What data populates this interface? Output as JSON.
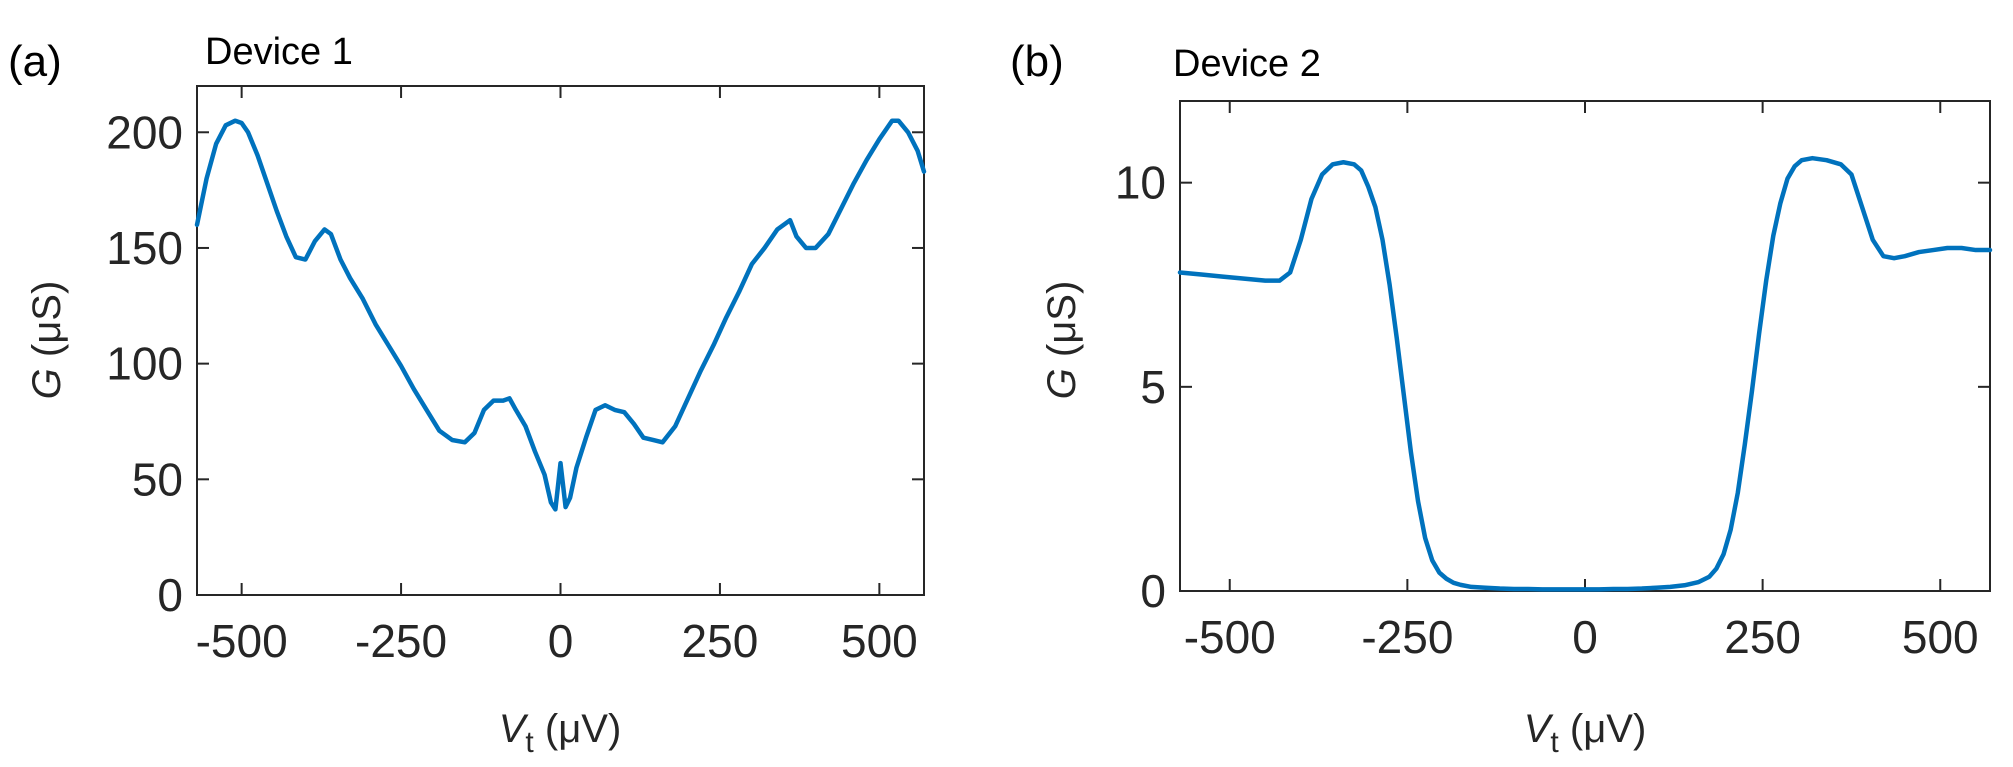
{
  "figure": {
    "panels": [
      {
        "letter": "(a)",
        "title": "Device 1"
      },
      {
        "letter": "(b)",
        "title": "Device 2"
      }
    ]
  },
  "colors": {
    "line": "#0072BD",
    "axes": "#262626",
    "background": "#ffffff"
  },
  "chart_data": [
    {
      "type": "line",
      "title": "Device 1",
      "xlabel": {
        "var": "V",
        "sub": "t",
        "unit": "μV"
      },
      "ylabel": {
        "var": "G",
        "unit": "μS"
      },
      "xlim": [
        -570,
        570
      ],
      "ylim": [
        0,
        220
      ],
      "xticks": [
        -500,
        -250,
        0,
        250,
        500
      ],
      "xticklabels": [
        "-500",
        "-250",
        "0",
        "250",
        "500"
      ],
      "yticks": [
        0,
        50,
        100,
        150,
        200
      ],
      "yticklabels": [
        "0",
        "50",
        "100",
        "150",
        "200"
      ],
      "grid": false,
      "legend": "none",
      "series": [
        {
          "x": [
            -570,
            -555,
            -540,
            -525,
            -510,
            -500,
            -490,
            -475,
            -460,
            -445,
            -430,
            -415,
            -400,
            -385,
            -370,
            -360,
            -345,
            -330,
            -310,
            -290,
            -270,
            -250,
            -230,
            -210,
            -190,
            -170,
            -150,
            -135,
            -120,
            -105,
            -90,
            -80,
            -70,
            -55,
            -40,
            -25,
            -15,
            -8,
            0,
            8,
            15,
            25,
            40,
            55,
            70,
            85,
            100,
            115,
            130,
            145,
            160,
            180,
            200,
            220,
            240,
            260,
            280,
            300,
            320,
            340,
            360,
            370,
            385,
            400,
            420,
            440,
            460,
            480,
            500,
            520,
            530,
            545,
            560,
            570
          ],
          "y": [
            160,
            180,
            195,
            203,
            205,
            204,
            200,
            190,
            178,
            166,
            155,
            146,
            145,
            153,
            158,
            156,
            145,
            137,
            128,
            117,
            108,
            99,
            89,
            80,
            71,
            67,
            66,
            70,
            80,
            84,
            84,
            85,
            80,
            73,
            62,
            52,
            40,
            37,
            57,
            38,
            42,
            55,
            68,
            80,
            82,
            80,
            79,
            74,
            68,
            67,
            66,
            73,
            85,
            97,
            108,
            120,
            131,
            143,
            150,
            158,
            162,
            155,
            150,
            150,
            156,
            167,
            178,
            188,
            197,
            205,
            205,
            200,
            192,
            183
          ]
        }
      ]
    },
    {
      "type": "line",
      "title": "Device 2",
      "xlabel": {
        "var": "V",
        "sub": "t",
        "unit": "μV"
      },
      "ylabel": {
        "var": "G",
        "unit": "μS"
      },
      "xlim": [
        -570,
        570
      ],
      "ylim": [
        0,
        12
      ],
      "xticks": [
        -500,
        -250,
        0,
        250,
        500
      ],
      "xticklabels": [
        "-500",
        "-250",
        "0",
        "250",
        "500"
      ],
      "yticks": [
        0,
        5,
        10
      ],
      "yticklabels": [
        "0",
        "5",
        "10"
      ],
      "grid": false,
      "legend": "none",
      "series": [
        {
          "x": [
            -570,
            -540,
            -510,
            -480,
            -450,
            -430,
            -415,
            -400,
            -385,
            -370,
            -355,
            -340,
            -325,
            -315,
            -305,
            -295,
            -285,
            -275,
            -265,
            -255,
            -245,
            -235,
            -225,
            -215,
            -205,
            -195,
            -185,
            -175,
            -160,
            -140,
            -120,
            -100,
            -80,
            -60,
            -40,
            -20,
            0,
            20,
            40,
            60,
            80,
            100,
            120,
            140,
            160,
            175,
            185,
            195,
            205,
            215,
            225,
            235,
            245,
            255,
            265,
            275,
            285,
            295,
            305,
            320,
            340,
            360,
            375,
            390,
            405,
            420,
            435,
            450,
            470,
            490,
            510,
            530,
            550,
            570
          ],
          "y": [
            7.8,
            7.75,
            7.7,
            7.65,
            7.6,
            7.6,
            7.8,
            8.6,
            9.6,
            10.2,
            10.45,
            10.5,
            10.45,
            10.3,
            9.9,
            9.4,
            8.6,
            7.5,
            6.2,
            4.8,
            3.4,
            2.2,
            1.3,
            0.75,
            0.45,
            0.3,
            0.2,
            0.15,
            0.1,
            0.08,
            0.06,
            0.05,
            0.05,
            0.04,
            0.04,
            0.04,
            0.04,
            0.04,
            0.05,
            0.05,
            0.06,
            0.08,
            0.1,
            0.14,
            0.22,
            0.35,
            0.55,
            0.9,
            1.5,
            2.4,
            3.6,
            4.9,
            6.3,
            7.6,
            8.7,
            9.5,
            10.1,
            10.4,
            10.55,
            10.6,
            10.55,
            10.45,
            10.2,
            9.4,
            8.6,
            8.2,
            8.15,
            8.2,
            8.3,
            8.35,
            8.4,
            8.4,
            8.35,
            8.35
          ]
        }
      ]
    }
  ]
}
